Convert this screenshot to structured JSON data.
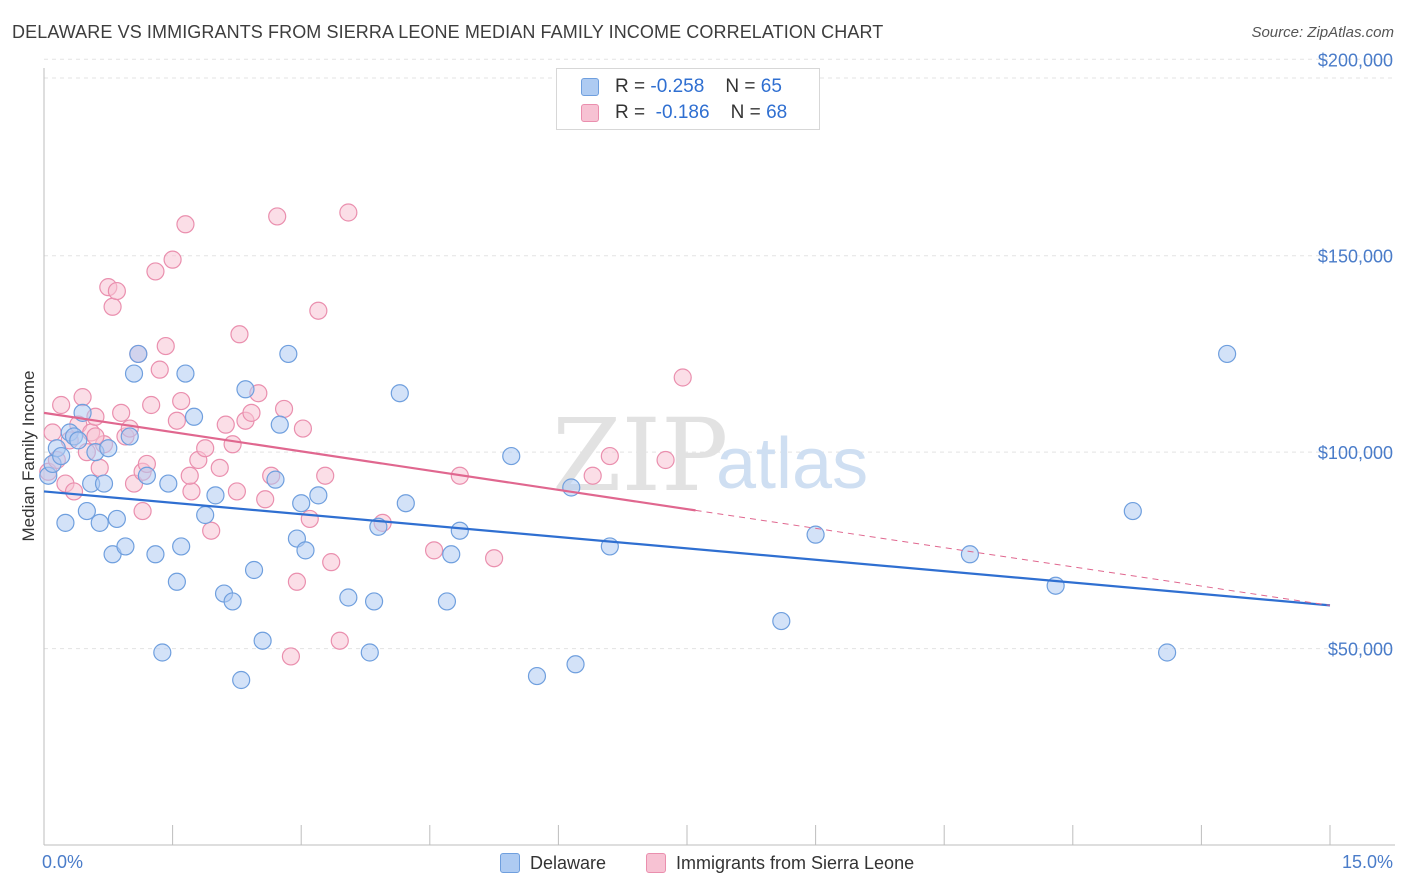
{
  "title": "DELAWARE VS IMMIGRANTS FROM SIERRA LEONE MEDIAN FAMILY INCOME CORRELATION CHART",
  "source": "Source: ZipAtlas.com",
  "watermark": {
    "zip": "ZIP",
    "atlas": "atlas"
  },
  "legend": {
    "r_label": "R =",
    "n_label": "N =",
    "rows": [
      {
        "r": "-0.258",
        "n": "65"
      },
      {
        "r": "-0.186",
        "n": "68"
      }
    ]
  },
  "chart_data": {
    "type": "scatter",
    "title": "DELAWARE VS IMMIGRANTS FROM SIERRA LEONE MEDIAN FAMILY INCOME CORRELATION CHART",
    "xlabel": "",
    "ylabel": "Median Family Income",
    "xlim": [
      0,
      15
    ],
    "ylim": [
      0,
      210000
    ],
    "x_tick_labels": [
      "0.0%",
      "15.0%"
    ],
    "y_ticks": [
      50000,
      100000,
      150000,
      200000
    ],
    "y_tick_labels": [
      "$50,000",
      "$100,000",
      "$150,000",
      "$200,000"
    ],
    "grid": true,
    "colors": {
      "delaware_fill": "#aecbf2",
      "delaware_stroke": "#6f9fde",
      "delaware_line": "#2f6fd1",
      "sierra_fill": "#f7c2d3",
      "sierra_stroke": "#ea8fae",
      "sierra_line": "#e0678f"
    },
    "series": [
      {
        "name": "Delaware",
        "trend": {
          "x0": 0,
          "y0": 90000,
          "x1": 15,
          "y1": 61000,
          "dashed_from": null
        },
        "points": [
          [
            0.05,
            94000
          ],
          [
            0.1,
            97000
          ],
          [
            0.15,
            101000
          ],
          [
            0.2,
            99000
          ],
          [
            0.25,
            82000
          ],
          [
            0.3,
            105000
          ],
          [
            0.35,
            104000
          ],
          [
            0.4,
            103000
          ],
          [
            0.45,
            110000
          ],
          [
            0.5,
            85000
          ],
          [
            0.55,
            92000
          ],
          [
            0.6,
            100000
          ],
          [
            0.65,
            82000
          ],
          [
            0.7,
            92000
          ],
          [
            0.8,
            74000
          ],
          [
            0.85,
            83000
          ],
          [
            0.95,
            76000
          ],
          [
            1.0,
            104000
          ],
          [
            1.05,
            120000
          ],
          [
            1.1,
            125000
          ],
          [
            1.2,
            94000
          ],
          [
            1.3,
            74000
          ],
          [
            1.38,
            49000
          ],
          [
            1.45,
            92000
          ],
          [
            1.55,
            67000
          ],
          [
            1.6,
            76000
          ],
          [
            1.65,
            120000
          ],
          [
            1.75,
            109000
          ],
          [
            1.88,
            84000
          ],
          [
            2.0,
            89000
          ],
          [
            2.1,
            64000
          ],
          [
            2.2,
            62000
          ],
          [
            2.3,
            42000
          ],
          [
            2.35,
            116000
          ],
          [
            2.45,
            70000
          ],
          [
            2.55,
            52000
          ],
          [
            2.7,
            93000
          ],
          [
            2.75,
            107000
          ],
          [
            2.85,
            125000
          ],
          [
            2.95,
            78000
          ],
          [
            3.0,
            87000
          ],
          [
            3.05,
            75000
          ],
          [
            3.2,
            89000
          ],
          [
            3.55,
            63000
          ],
          [
            3.8,
            49000
          ],
          [
            3.85,
            62000
          ],
          [
            3.9,
            81000
          ],
          [
            4.15,
            115000
          ],
          [
            4.22,
            87000
          ],
          [
            4.7,
            62000
          ],
          [
            4.75,
            74000
          ],
          [
            4.85,
            80000
          ],
          [
            5.45,
            99000
          ],
          [
            5.75,
            43000
          ],
          [
            6.15,
            91000
          ],
          [
            6.2,
            46000
          ],
          [
            6.6,
            76000
          ],
          [
            8.6,
            57000
          ],
          [
            9.0,
            79000
          ],
          [
            10.8,
            74000
          ],
          [
            11.8,
            66000
          ],
          [
            12.7,
            85000
          ],
          [
            13.1,
            49000
          ],
          [
            13.8,
            125000
          ],
          [
            0.75,
            101000
          ]
        ]
      },
      {
        "name": "Immigrants from Sierra Leone",
        "trend": {
          "x0": 0,
          "y0": 110000,
          "x1": 15,
          "y1": 61000,
          "dashed_from": 7.6
        },
        "points": [
          [
            0.05,
            95000
          ],
          [
            0.1,
            105000
          ],
          [
            0.15,
            98000
          ],
          [
            0.2,
            112000
          ],
          [
            0.25,
            92000
          ],
          [
            0.3,
            103000
          ],
          [
            0.35,
            90000
          ],
          [
            0.4,
            107000
          ],
          [
            0.45,
            114000
          ],
          [
            0.5,
            100000
          ],
          [
            0.55,
            105000
          ],
          [
            0.6,
            109000
          ],
          [
            0.65,
            96000
          ],
          [
            0.7,
            102000
          ],
          [
            0.75,
            142000
          ],
          [
            0.8,
            137000
          ],
          [
            0.85,
            141000
          ],
          [
            0.9,
            110000
          ],
          [
            0.95,
            104000
          ],
          [
            1.0,
            106000
          ],
          [
            1.05,
            92000
          ],
          [
            1.1,
            125000
          ],
          [
            1.15,
            95000
          ],
          [
            1.2,
            97000
          ],
          [
            1.25,
            112000
          ],
          [
            1.3,
            146000
          ],
          [
            1.35,
            121000
          ],
          [
            1.42,
            127000
          ],
          [
            1.5,
            149000
          ],
          [
            1.55,
            108000
          ],
          [
            1.6,
            113000
          ],
          [
            1.65,
            158000
          ],
          [
            1.72,
            90000
          ],
          [
            1.8,
            98000
          ],
          [
            1.88,
            101000
          ],
          [
            1.95,
            80000
          ],
          [
            2.05,
            96000
          ],
          [
            2.12,
            107000
          ],
          [
            2.2,
            102000
          ],
          [
            2.28,
            130000
          ],
          [
            2.35,
            108000
          ],
          [
            2.42,
            110000
          ],
          [
            2.5,
            115000
          ],
          [
            2.58,
            88000
          ],
          [
            2.65,
            94000
          ],
          [
            2.72,
            160000
          ],
          [
            2.8,
            111000
          ],
          [
            2.88,
            48000
          ],
          [
            2.95,
            67000
          ],
          [
            3.02,
            106000
          ],
          [
            3.1,
            83000
          ],
          [
            3.2,
            136000
          ],
          [
            3.28,
            94000
          ],
          [
            3.35,
            72000
          ],
          [
            3.45,
            52000
          ],
          [
            3.55,
            161000
          ],
          [
            3.95,
            82000
          ],
          [
            4.55,
            75000
          ],
          [
            4.85,
            94000
          ],
          [
            5.25,
            73000
          ],
          [
            6.4,
            94000
          ],
          [
            6.6,
            99000
          ],
          [
            7.25,
            98000
          ],
          [
            7.45,
            119000
          ],
          [
            1.15,
            85000
          ],
          [
            0.6,
            104000
          ],
          [
            2.25,
            90000
          ],
          [
            1.7,
            94000
          ]
        ]
      }
    ]
  }
}
